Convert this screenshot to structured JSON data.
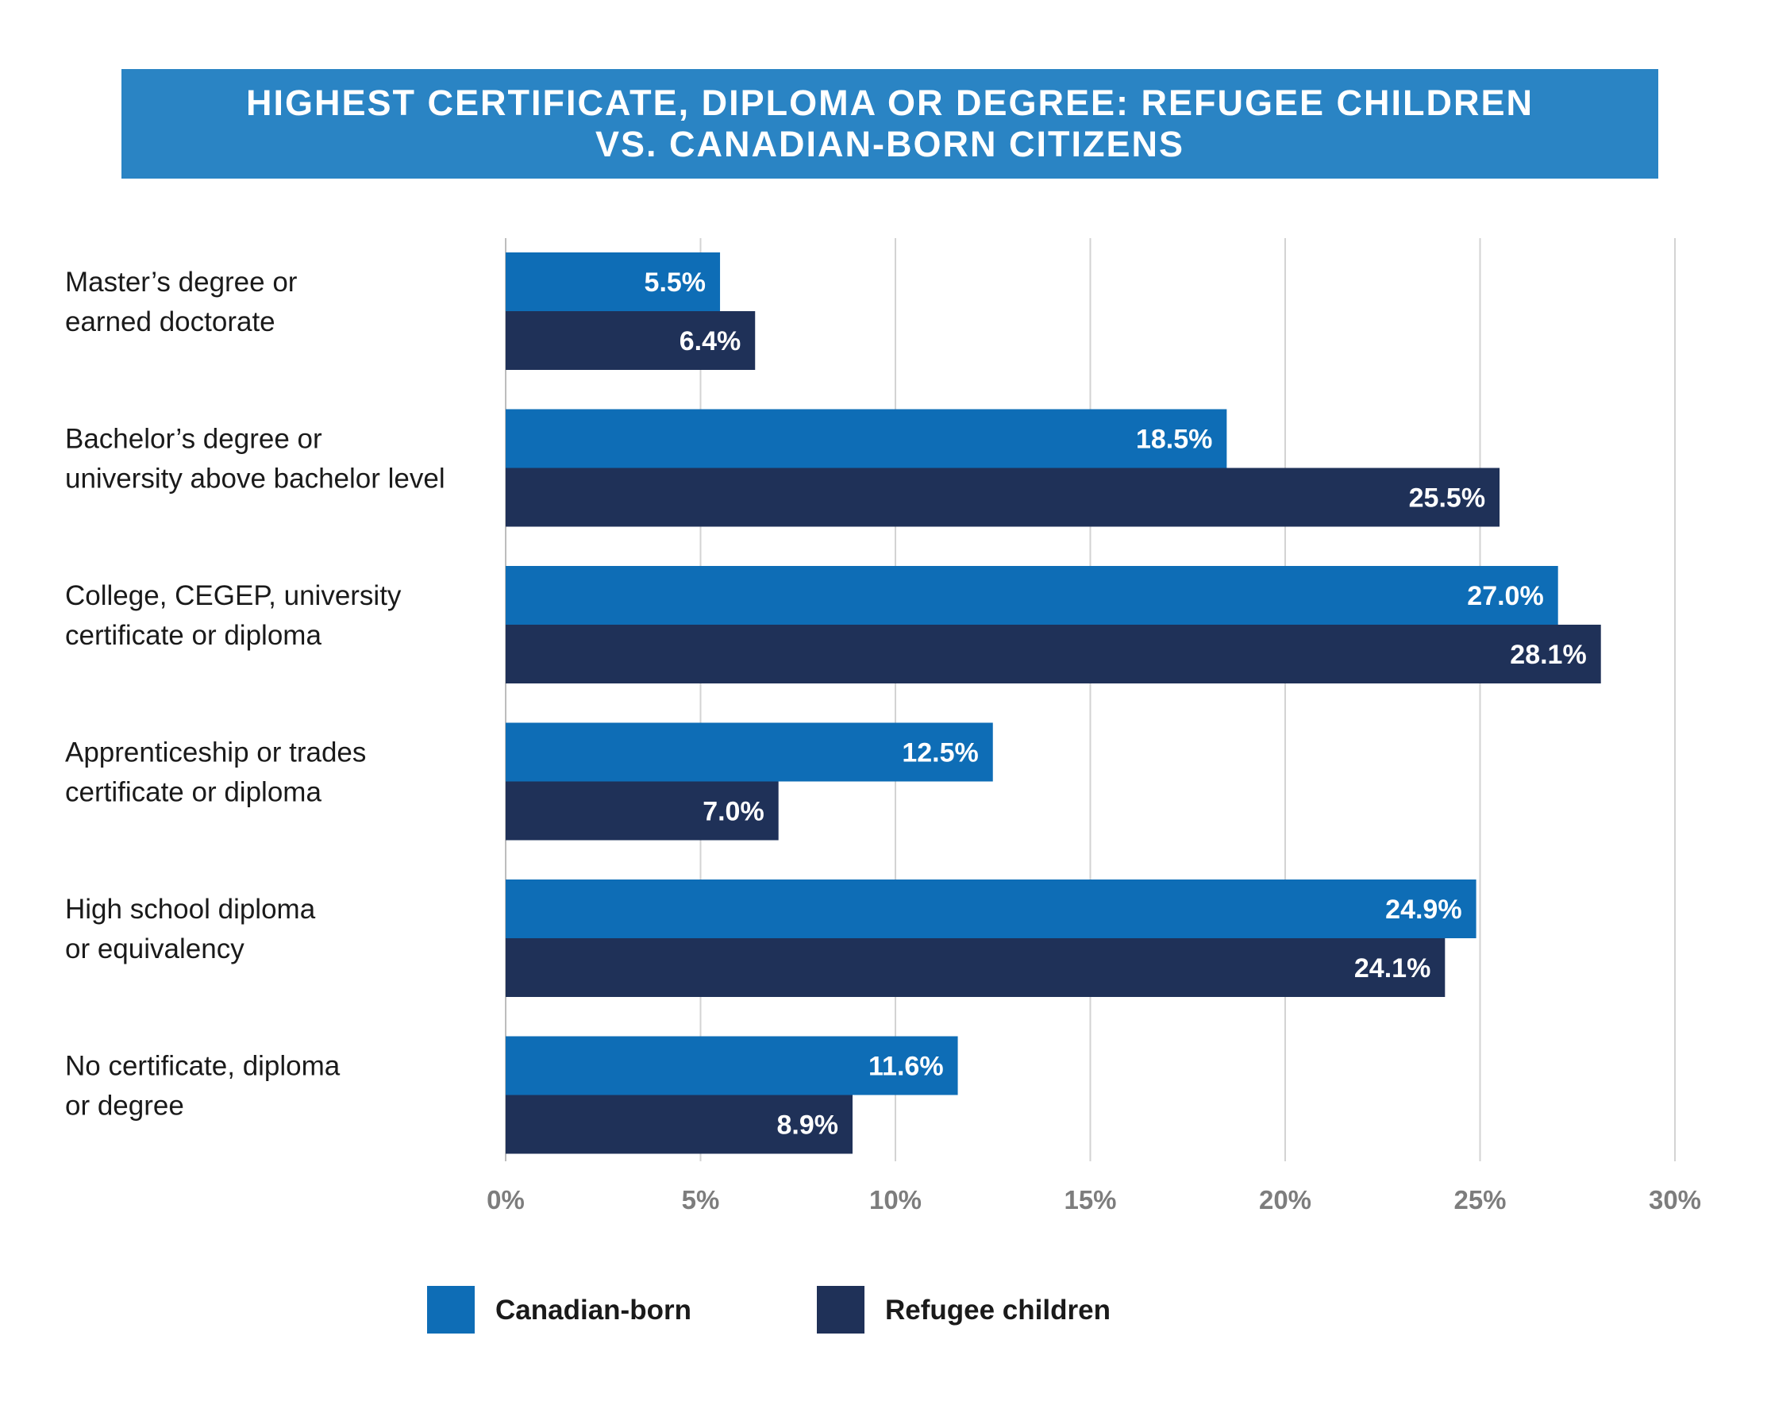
{
  "title": {
    "line1": "HIGHEST CERTIFICATE, DIPLOMA OR DEGREE: REFUGEE CHILDREN",
    "line2": "VS. CANADIAN-BORN CITIZENS"
  },
  "colors": {
    "banner": "#2a84c4",
    "canadian_born": "#0e6db6",
    "refugee_children": "#1f3158",
    "grid": "#d3d3d3",
    "tick_text": "#7d7d7d"
  },
  "chart_data": {
    "type": "bar",
    "orientation": "horizontal",
    "categories": [
      [
        "Master’s degree or",
        "earned doctorate"
      ],
      [
        "Bachelor’s degree or",
        "university above bachelor level"
      ],
      [
        "College, CEGEP, university",
        "certificate or diploma"
      ],
      [
        "Apprenticeship or trades",
        "certificate or diploma"
      ],
      [
        "High school diploma",
        "or equivalency"
      ],
      [
        "No certificate, diploma",
        "or degree"
      ]
    ],
    "series": [
      {
        "name": "Canadian-born",
        "values": [
          5.5,
          18.5,
          27.0,
          12.5,
          24.9,
          11.6
        ],
        "labels": [
          "5.5%",
          "18.5%",
          "27.0%",
          "12.5%",
          "24.9%",
          "11.6%"
        ]
      },
      {
        "name": "Refugee children",
        "values": [
          6.4,
          25.5,
          28.1,
          7.0,
          24.1,
          8.9
        ],
        "labels": [
          "6.4%",
          "25.5%",
          "28.1%",
          "7.0%",
          "24.1%",
          "8.9%"
        ]
      }
    ],
    "xlim": [
      0,
      30
    ],
    "xticks": [
      "0%",
      "5%",
      "10%",
      "15%",
      "20%",
      "25%",
      "30%"
    ],
    "grid": true,
    "legend_position": "bottom"
  }
}
